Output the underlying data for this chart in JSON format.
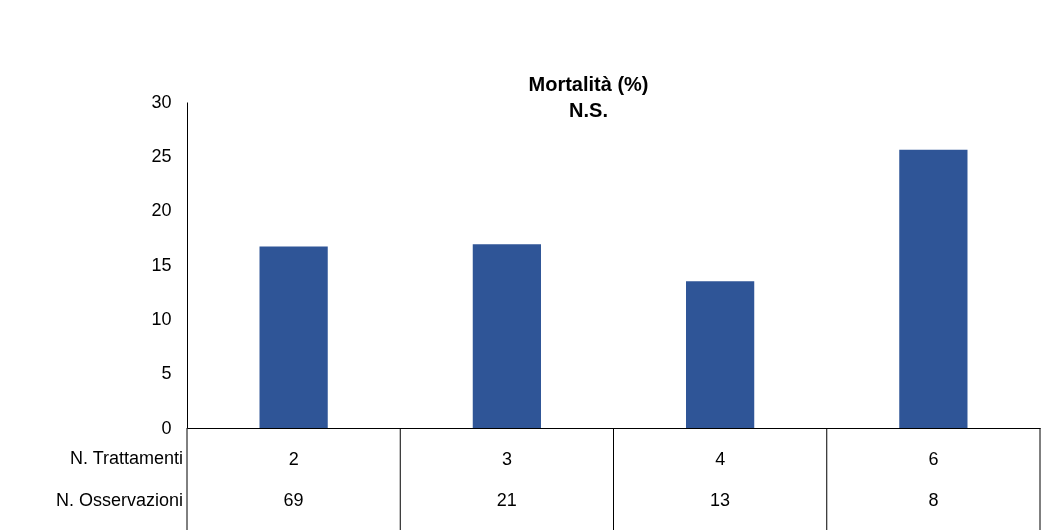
{
  "chart_data": {
    "type": "bar",
    "title": "Mortalità (%)",
    "subtitle": "N.S.",
    "xlabel": "N. Trattamenti",
    "categories": [
      "2",
      "3",
      "4",
      "6"
    ],
    "values": [
      16.7,
      16.9,
      13.5,
      25.6
    ],
    "color": "#2f5597",
    "ylim": [
      0,
      30
    ],
    "yticks": [
      0,
      5,
      10,
      15,
      20,
      25,
      30
    ],
    "grid": false,
    "annotations": [
      "N. Osservazioni",
      "69",
      "21",
      "13",
      "8"
    ]
  }
}
